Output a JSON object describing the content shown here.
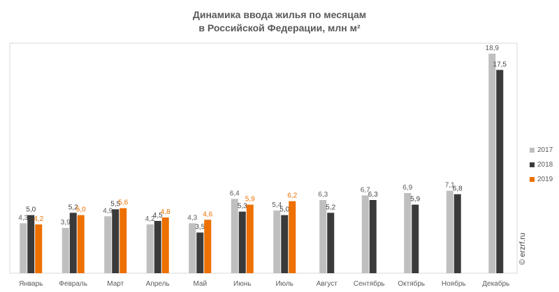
{
  "title_line1": "Динамика ввода жилья по месяцам",
  "title_line2": "в Российской Федерации, млн м²",
  "watermark": "© erzrf.ru",
  "chart_data": {
    "type": "bar",
    "categories": [
      "Январь",
      "Февраль",
      "Март",
      "Апрель",
      "Май",
      "Июнь",
      "Июль",
      "Август",
      "Сентябрь",
      "Октябрь",
      "Ноябрь",
      "Декабрь"
    ],
    "series": [
      {
        "name": "2017",
        "color": "#bfbfbf",
        "label_color": "#595959",
        "values": [
          4.3,
          3.9,
          4.9,
          4.2,
          4.3,
          6.4,
          5.4,
          6.3,
          6.7,
          6.9,
          7.1,
          18.9
        ],
        "labels": [
          "4,3",
          "3,9",
          "4,9",
          "4,2",
          "4,3",
          "6,4",
          "5,4",
          "6,3",
          "6,7",
          "6,9",
          "7,1",
          "18,9"
        ]
      },
      {
        "name": "2018",
        "color": "#3a3a3a",
        "label_color": "#404040",
        "values": [
          5.0,
          5.2,
          5.5,
          4.5,
          3.5,
          5.3,
          5.0,
          5.2,
          6.3,
          5.9,
          6.8,
          17.5
        ],
        "labels": [
          "5,0",
          "5,2",
          "5,5",
          "4,5",
          "3,5",
          "5,3",
          "5,0",
          "5,2",
          "6,3",
          "5,9",
          "6,8",
          "17,5"
        ]
      },
      {
        "name": "2019",
        "color": "#ed7000",
        "label_color": "#ed7000",
        "values": [
          4.2,
          5.0,
          5.6,
          4.8,
          4.6,
          5.9,
          6.2,
          null,
          null,
          null,
          null,
          null
        ],
        "labels": [
          "4,2",
          "5,0",
          "5,6",
          "4,8",
          "4,6",
          "5,9",
          "6,2",
          "",
          "",
          "",
          "",
          ""
        ]
      }
    ],
    "ylim": [
      0,
      19.8
    ],
    "legend": "right"
  }
}
